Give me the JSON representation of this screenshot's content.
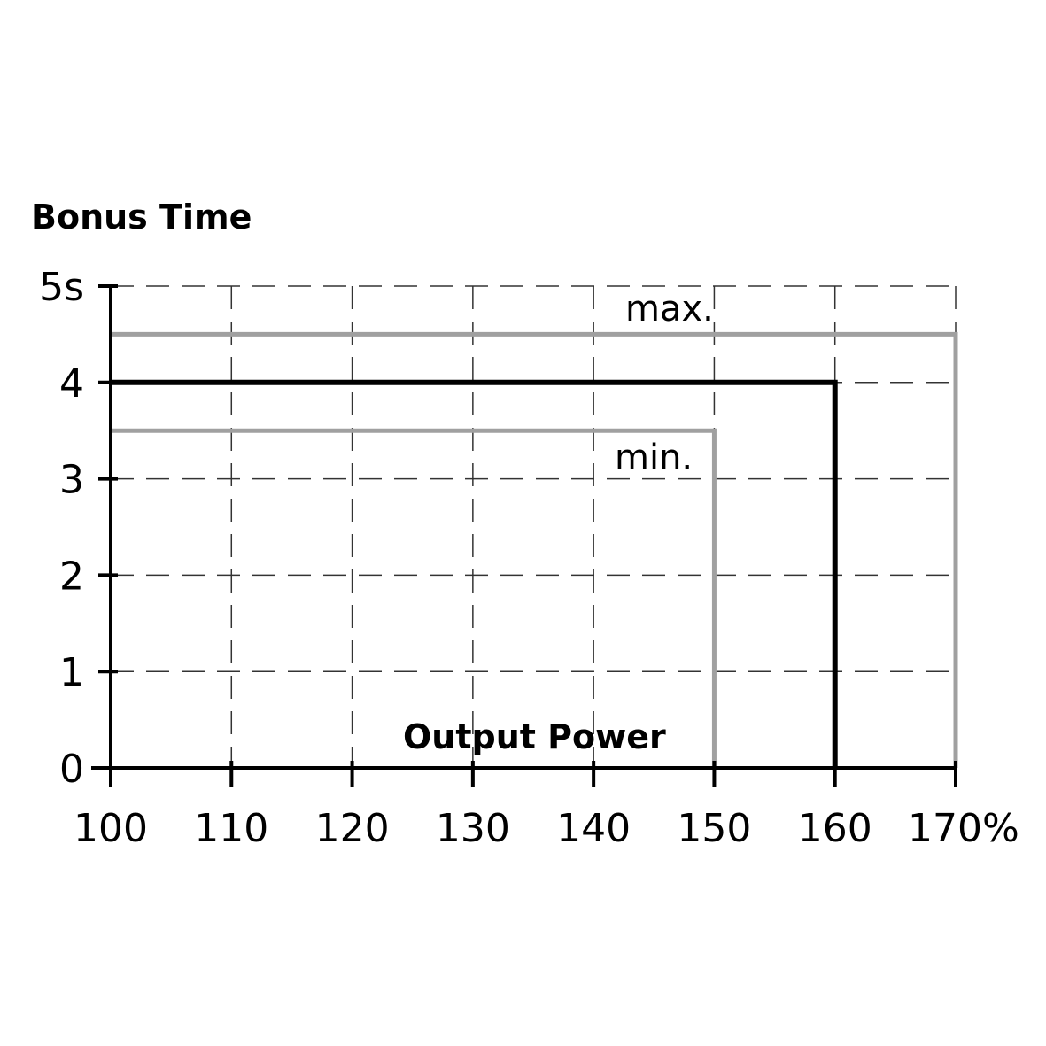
{
  "chart_data": {
    "type": "line",
    "title": "Bonus Time",
    "xlabel": "Output Power",
    "ylabel": "Bonus Time",
    "xlim": [
      100,
      170
    ],
    "ylim": [
      0,
      5
    ],
    "x_ticks": [
      "100",
      "110",
      "120",
      "130",
      "140",
      "150",
      "160",
      "170%"
    ],
    "x_tick_values": [
      100,
      110,
      120,
      130,
      140,
      150,
      160,
      170
    ],
    "y_ticks": [
      "0",
      "1",
      "2",
      "3",
      "4",
      "5s"
    ],
    "y_tick_values": [
      0,
      1,
      2,
      3,
      4,
      5
    ],
    "grid": true,
    "series": [
      {
        "name": "max.",
        "color": "#a0a0a0",
        "x": [
          100,
          170,
          170
        ],
        "y": [
          4.5,
          4.5,
          0
        ]
      },
      {
        "color": "#000000",
        "x": [
          100,
          160,
          160
        ],
        "y": [
          4,
          4,
          0
        ]
      },
      {
        "name": "min.",
        "color": "#a0a0a0",
        "x": [
          100,
          150,
          150
        ],
        "y": [
          3.5,
          3.5,
          0
        ]
      }
    ]
  }
}
